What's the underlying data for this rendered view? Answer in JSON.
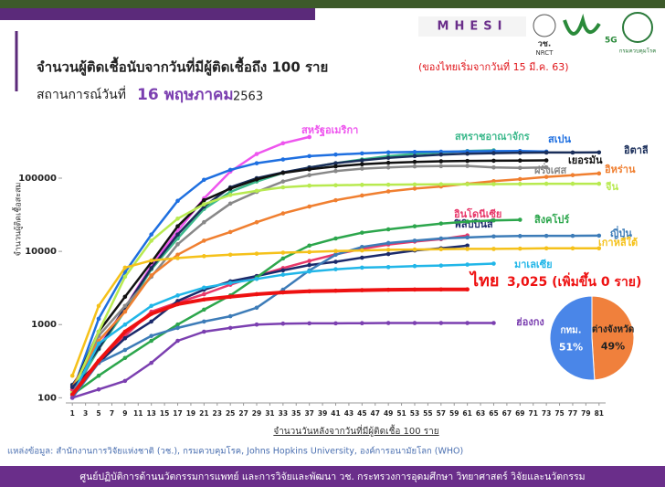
{
  "header": {
    "title": "จำนวนผู้ติดเชื้อนับจากวันที่มีผู้ติดเชื้อถึง 100 ราย",
    "title_note": "(ของไทยเริ่มจากวันที่ 15 มี.ค. 63)",
    "date_prefix": "สถานการณ์วันที่",
    "date": "16 พฤษภาคม",
    "year": "2563",
    "logos": [
      "MHESI",
      "วช.",
      "NRCT",
      "5G",
      "กรมควบคุมโรค"
    ]
  },
  "chart_data": [
    {
      "type": "line",
      "xlabel": "จำนวนวันหลังจากวันที่มีผู้ติดเชื้อ 100 ราย",
      "ylabel": "จำนวนผู้ติดเชื้อสะสม",
      "log_scale": true,
      "annotation": "3,025 (เพิ่มขึ้น 0 ราย)",
      "x": [
        1,
        5,
        9,
        13,
        17,
        21,
        25,
        29,
        33,
        37,
        41,
        45,
        49,
        53,
        57,
        61,
        65,
        69,
        73,
        77,
        81
      ],
      "xlim": [
        0,
        82
      ],
      "xticks": [
        1,
        3,
        5,
        7,
        9,
        11,
        13,
        15,
        17,
        19,
        21,
        23,
        25,
        27,
        29,
        31,
        33,
        35,
        37,
        39,
        41,
        43,
        45,
        47,
        49,
        51,
        53,
        55,
        57,
        59,
        61,
        63,
        65,
        67,
        69,
        71,
        73,
        75,
        77,
        79,
        81
      ],
      "ylim": [
        85,
        500000
      ],
      "yticks": [
        100,
        1000,
        10000,
        100000
      ],
      "series": [
        {
          "name": "สหรัฐอเมริกา",
          "color": "#ee55ee",
          "values": [
            100,
            500,
            1700,
            6400,
            19000,
            53000,
            123000,
            214000,
            300000,
            365000,
            null,
            null,
            null,
            null,
            null,
            null,
            null,
            null,
            null,
            null,
            null
          ]
        },
        {
          "name": "สหราชอาณาจักร",
          "color": "#3cb98c",
          "values": [
            115,
            460,
            1540,
            5680,
            15000,
            38000,
            65000,
            90000,
            118000,
            140000,
            160000,
            180000,
            200000,
            215000,
            225000,
            235000,
            240000,
            null,
            null,
            null,
            null
          ]
        },
        {
          "name": "สเปน",
          "color": "#1e6fe0",
          "values": [
            120,
            1200,
            5200,
            17000,
            49000,
            95000,
            130000,
            160000,
            180000,
            200000,
            210000,
            218000,
            225000,
            228000,
            230000,
            232000,
            234000,
            235000,
            231000,
            null,
            null
          ]
        },
        {
          "name": "อิตาลี",
          "color": "#1a2e5a",
          "values": [
            150,
            470,
            1700,
            5900,
            17000,
            41000,
            75000,
            100000,
            120000,
            140000,
            160000,
            175000,
            190000,
            200000,
            210000,
            216000,
            220000,
            223000,
            224000,
            224000,
            225000
          ]
        },
        {
          "name": "เยอรมัน",
          "color": "#111111",
          "values": [
            130,
            800,
            2400,
            7100,
            22000,
            50000,
            72000,
            96000,
            118000,
            132000,
            145000,
            155000,
            162000,
            167000,
            170000,
            172000,
            173000,
            174000,
            175000,
            null,
            null
          ]
        },
        {
          "name": "ฝรั่งเศส",
          "color": "#888888",
          "values": [
            130,
            700,
            1800,
            4500,
            12500,
            25000,
            45000,
            65000,
            90000,
            110000,
            125000,
            135000,
            140000,
            145000,
            146000,
            147000,
            140000,
            138000,
            140000,
            null,
            null
          ]
        },
        {
          "name": "อิหร่าน",
          "color": "#f07f30",
          "values": [
            140,
            600,
            1500,
            4700,
            9000,
            14000,
            18400,
            25000,
            33000,
            41000,
            50000,
            58000,
            66000,
            72000,
            77000,
            84000,
            91000,
            97000,
            104000,
            110000,
            116000
          ]
        },
        {
          "name": "จีน",
          "color": "#b8ea50",
          "values": [
            120,
            800,
            4500,
            14000,
            28000,
            44000,
            59000,
            67000,
            75000,
            79000,
            80000,
            81000,
            81500,
            82000,
            82500,
            82700,
            83000,
            83300,
            84000,
            84000,
            84000
          ]
        },
        {
          "name": "อินโดนีเซีย",
          "color": "#e8386a",
          "values": [
            130,
            300,
            700,
            1500,
            2000,
            2600,
            3500,
            4600,
            5900,
            7400,
            9100,
            10800,
            12400,
            13600,
            14700,
            16500,
            null,
            null,
            null,
            null,
            null
          ]
        },
        {
          "name": "ฟิลิปปินส์",
          "color": "#1b2a6b",
          "values": [
            140,
            300,
            650,
            1100,
            2100,
            3000,
            3900,
            4600,
            5500,
            6500,
            7200,
            8200,
            9200,
            10300,
            11000,
            12000,
            null,
            null,
            null,
            null,
            null
          ]
        },
        {
          "name": "สิงคโปร์",
          "color": "#2ca64c",
          "values": [
            110,
            200,
            350,
            600,
            1000,
            1600,
            2500,
            4400,
            8000,
            12000,
            15000,
            18000,
            20000,
            22000,
            24000,
            25500,
            26500,
            27000,
            null,
            null,
            null
          ]
        },
        {
          "name": "ญี่ปุ่น",
          "color": "#3d7cb8",
          "values": [
            100,
            300,
            450,
            700,
            900,
            1100,
            1300,
            1700,
            3000,
            5500,
            9000,
            11500,
            13000,
            14000,
            15000,
            15500,
            16000,
            16200,
            16300,
            16300,
            16400
          ]
        },
        {
          "name": "เกาหลีใต้",
          "color": "#f5c11a",
          "values": [
            200,
            1800,
            6000,
            7500,
            8100,
            8600,
            9000,
            9300,
            9600,
            9800,
            10100,
            10300,
            10500,
            10600,
            10700,
            10800,
            10800,
            10900,
            11000,
            11000,
            11000
          ]
        },
        {
          "name": "มาเลเซีย",
          "color": "#21b6e8",
          "values": [
            110,
            550,
            1000,
            1800,
            2500,
            3200,
            3700,
            4200,
            4800,
            5300,
            5700,
            6000,
            6100,
            6300,
            6400,
            6600,
            6800,
            null,
            null,
            null,
            null
          ]
        },
        {
          "name": "ไทย",
          "color": "#ee1111",
          "values": [
            110,
            320,
            800,
            1400,
            1900,
            2200,
            2400,
            2600,
            2750,
            2850,
            2900,
            2950,
            2990,
            3010,
            3020,
            3025,
            null,
            null,
            null,
            null,
            null
          ]
        },
        {
          "name": "ฮ่องกง",
          "color": "#7b3fb0",
          "values": [
            100,
            130,
            170,
            300,
            600,
            800,
            900,
            1000,
            1030,
            1040,
            1040,
            1045,
            1050,
            1050,
            1050,
            1050,
            1051,
            null,
            null,
            null,
            null
          ]
        }
      ]
    },
    {
      "type": "pie",
      "categories": [
        "กทม.",
        "ต่างจังหวัด"
      ],
      "values": [
        51,
        49
      ],
      "value_labels": [
        "51%",
        "49%"
      ],
      "colors": [
        "#4a86e8",
        "#f0803c"
      ]
    }
  ],
  "source": "แหล่งข้อมูล: สำนักงานการวิจัยแห่งชาติ (วช.), กรมควบคุมโรค, Johns Hopkins University, องค์การอนามัยโลก (WHO)",
  "footer": "ศูนย์ปฏิบัติการด้านนวัตกรรมการแพทย์ และการวิจัยและพัฒนา วช.   กระทรวงการอุดมศึกษา วิทยาศาสตร์ วิจัยและนวัตกรรม"
}
